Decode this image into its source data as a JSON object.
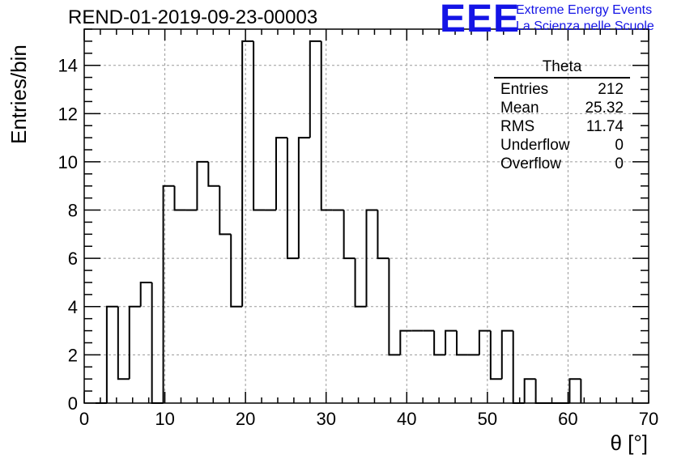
{
  "header": {
    "run_title": "REND-01-2019-09-23-00003"
  },
  "logo": {
    "mark": "EEE",
    "line1": "Extreme Energy Events",
    "line2": "La Scienza nelle Scuole",
    "color": "#1414e6"
  },
  "stats_box": {
    "name": "Theta",
    "rows": [
      {
        "label": "Entries",
        "value": "212"
      },
      {
        "label": "Mean",
        "value": "25.32"
      },
      {
        "label": "RMS",
        "value": "11.74"
      },
      {
        "label": "Underflow",
        "value": "0"
      },
      {
        "label": "Overflow",
        "value": "0"
      }
    ]
  },
  "chart_data": {
    "type": "bar",
    "histogram": true,
    "xlabel": "θ [°]",
    "ylabel": "Entries/bin",
    "xlim": [
      0,
      70
    ],
    "ylim": [
      0,
      15.5
    ],
    "x_ticks": [
      0,
      10,
      20,
      30,
      40,
      50,
      60,
      70
    ],
    "y_ticks": [
      0,
      2,
      4,
      6,
      8,
      10,
      12,
      14
    ],
    "grid": true,
    "bin_edges": [
      1.4,
      2.8,
      4.2,
      5.6,
      7.0,
      8.4,
      9.8,
      11.2,
      12.6,
      14.0,
      15.4,
      16.8,
      18.2,
      19.6,
      21.0,
      22.4,
      23.8,
      25.2,
      26.6,
      28.0,
      29.4,
      30.8,
      32.2,
      33.6,
      35.0,
      36.4,
      37.8,
      39.2,
      40.6,
      42.0,
      43.4,
      44.8,
      46.2,
      47.6,
      49.0,
      50.4,
      51.8,
      53.2,
      54.6,
      56.0,
      57.4,
      58.8,
      60.2,
      61.6
    ],
    "values": [
      0,
      4,
      1,
      4,
      5,
      0,
      9,
      8,
      8,
      10,
      9,
      7,
      4,
      15,
      8,
      8,
      11,
      6,
      11,
      15,
      8,
      8,
      6,
      4,
      8,
      6,
      2,
      3,
      3,
      3,
      2,
      3,
      2,
      2,
      3,
      1,
      3,
      0,
      1,
      0,
      0,
      0,
      1
    ]
  }
}
